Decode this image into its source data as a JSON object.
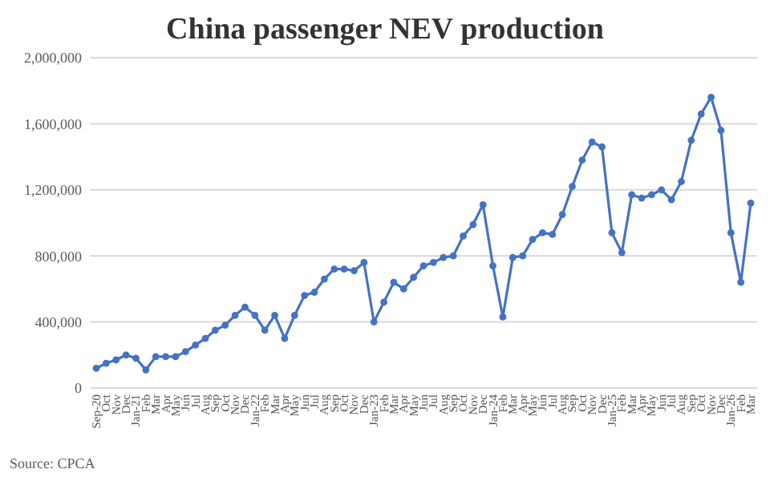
{
  "chart_data": {
    "type": "line",
    "title": "China passenger NEV production",
    "categories": [
      "Sep-20",
      "Oct",
      "Nov",
      "Dec",
      "Jan-21",
      "Feb",
      "Mar",
      "Apr",
      "May",
      "Jun",
      "Jul",
      "Aug",
      "Sep",
      "Oct",
      "Nov",
      "Dec",
      "Jan-22",
      "Feb",
      "Mar",
      "Apr",
      "May",
      "Jun",
      "Jul",
      "Aug",
      "Sep",
      "Oct",
      "Nov",
      "Dec",
      "Jan-23",
      "Feb",
      "Mar",
      "Apr",
      "May",
      "Jun",
      "Jul",
      "Aug",
      "Sep",
      "Oct",
      "Nov",
      "Dec",
      "Jan-24",
      "Feb",
      "Mar",
      "Apr",
      "May",
      "Jun",
      "Jul",
      "Aug",
      "Sep",
      "Oct",
      "Nov",
      "Dec",
      "Jan-25",
      "Feb",
      "Mar",
      "Apr",
      "May",
      "Jun",
      "Jul",
      "Aug",
      "Sep",
      "Oct",
      "Nov",
      "Dec",
      "Jan-26",
      "Feb",
      "Mar"
    ],
    "series": [
      {
        "color": "#4472c4",
        "values": [
          120000,
          150000,
          170000,
          200000,
          180000,
          110000,
          190000,
          190000,
          190000,
          220000,
          260000,
          300000,
          350000,
          380000,
          440000,
          490000,
          440000,
          350000,
          440000,
          300000,
          440000,
          560000,
          580000,
          660000,
          720000,
          720000,
          710000,
          760000,
          400000,
          520000,
          640000,
          600000,
          670000,
          740000,
          760000,
          790000,
          800000,
          920000,
          990000,
          1110000,
          740000,
          430000,
          790000,
          800000,
          900000,
          940000,
          930000,
          1050000,
          1220000,
          1380000,
          1490000,
          1460000,
          940000,
          820000,
          1170000,
          1150000,
          1170000,
          1200000,
          1140000,
          1250000,
          1500000,
          1660000,
          1760000,
          1560000,
          940000,
          640000,
          1120000
        ]
      }
    ],
    "ylim": [
      0,
      2000000
    ],
    "yticks": [
      0,
      {
        "value": 400000,
        "label": "400,000"
      },
      {
        "value": 800000,
        "label": "800,000"
      },
      {
        "value": 1200000,
        "label": "1,200,000"
      },
      {
        "value": 1600000,
        "label": "1,600,000"
      },
      {
        "value": 2000000,
        "label": "2,000,000"
      }
    ],
    "grid": "y",
    "marker": "circle",
    "line_style": "solid",
    "annotations": [
      "Source: CPCA"
    ]
  }
}
